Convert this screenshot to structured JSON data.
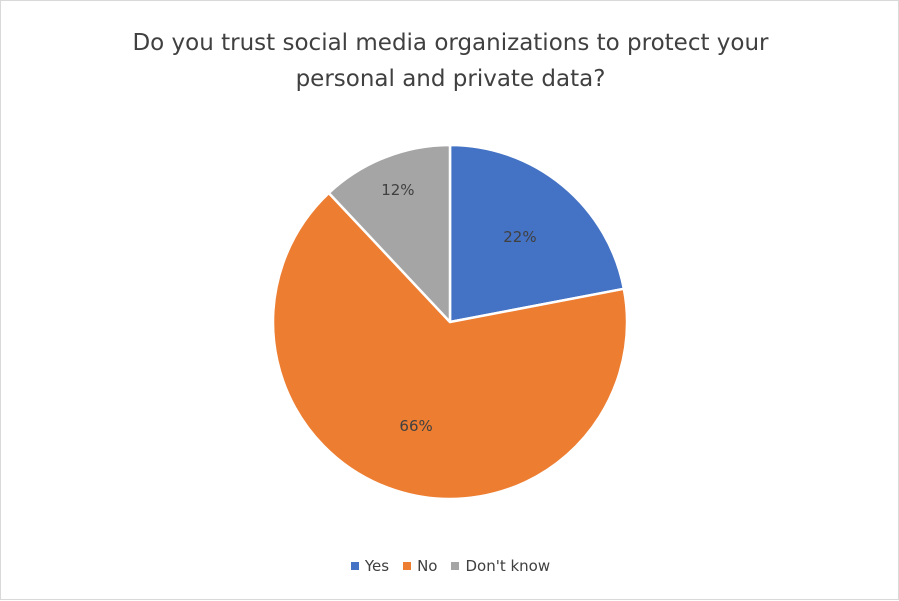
{
  "chart_data": {
    "type": "pie",
    "title_lines": [
      "Do you trust social media organizations to protect your",
      "personal and private data?"
    ],
    "categories": [
      "Yes",
      "No",
      "Don't know"
    ],
    "values": [
      22,
      66,
      12
    ],
    "labels": [
      "22%",
      "66%",
      "12%"
    ],
    "colors": [
      "#4472c4",
      "#ed7d31",
      "#a5a5a5"
    ],
    "legend_position": "bottom"
  }
}
